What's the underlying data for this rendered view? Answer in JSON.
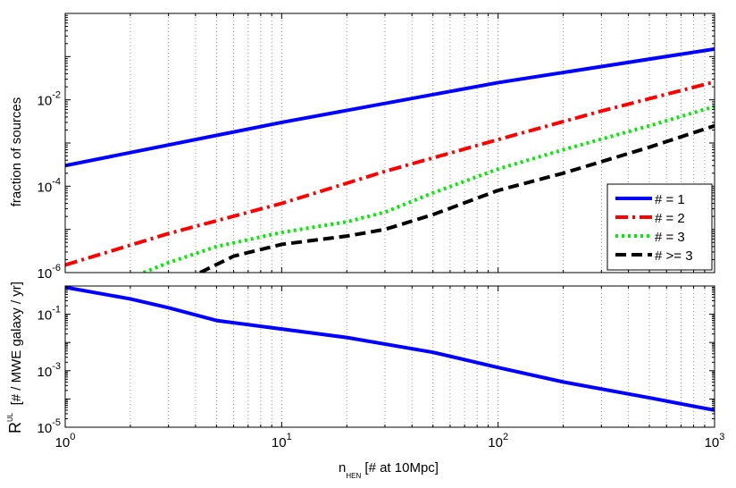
{
  "chart_data": [
    {
      "type": "line",
      "x_scale": "log",
      "y_scale": "log",
      "xlim": [
        1,
        1000
      ],
      "ylim": [
        1e-06,
        1
      ],
      "x_ticks": [
        1,
        10,
        100,
        1000
      ],
      "y_ticks": [
        1e-06,
        0.0001,
        0.01
      ],
      "y_tick_labels": [
        {
          "base": "10",
          "exp": "-6"
        },
        {
          "base": "10",
          "exp": "-4"
        },
        {
          "base": "10",
          "exp": "-2"
        }
      ],
      "ylabel": "fraction of sources",
      "grid": "dotted, x major and minor",
      "legend_position": "bottom-right",
      "legend_labels": [
        "#  = 1",
        "#  = 2",
        "#  = 3",
        "# >= 3"
      ],
      "series": [
        {
          "color": "#0000ff",
          "dash": "solid",
          "x": [
            1,
            10,
            100,
            1000
          ],
          "y": [
            0.0003,
            0.003,
            0.025,
            0.15
          ]
        },
        {
          "color": "#ff0000",
          "dash": "dashdot",
          "x": [
            1,
            3,
            10,
            30,
            100,
            300,
            1000
          ],
          "y": [
            1.5e-06,
            8e-06,
            4e-05,
            0.00022,
            0.0012,
            0.0055,
            0.026
          ]
        },
        {
          "color": "#00ee00",
          "dash": "dotted",
          "x": [
            2.3,
            3,
            5,
            10,
            20,
            30,
            50,
            100,
            200,
            500,
            1000
          ],
          "y": [
            1e-06,
            1.7e-06,
            4e-06,
            8.5e-06,
            1.5e-05,
            2.5e-05,
            7e-05,
            0.00025,
            0.0007,
            0.0025,
            0.007
          ]
        },
        {
          "color": "#000000",
          "dash": "dashed",
          "x": [
            4.2,
            6,
            10,
            20,
            30,
            50,
            100,
            200,
            500,
            1000
          ],
          "y": [
            1e-06,
            2.4e-06,
            4.5e-06,
            7e-06,
            1e-05,
            2.2e-05,
            8e-05,
            0.0002,
            0.0008,
            0.0025
          ]
        }
      ]
    },
    {
      "type": "line",
      "x_scale": "log",
      "y_scale": "log",
      "xlim": [
        1,
        1000
      ],
      "ylim": [
        1e-05,
        1
      ],
      "x_ticks": [
        1,
        10,
        100,
        1000
      ],
      "x_tick_labels": [
        {
          "base": "10",
          "exp": "0"
        },
        {
          "base": "10",
          "exp": "1"
        },
        {
          "base": "10",
          "exp": "2"
        },
        {
          "base": "10",
          "exp": "3"
        }
      ],
      "y_ticks": [
        1e-05,
        0.001,
        0.1
      ],
      "y_tick_labels": [
        {
          "base": "10",
          "exp": "-5"
        },
        {
          "base": "10",
          "exp": "-3"
        },
        {
          "base": "10",
          "exp": "-1"
        }
      ],
      "ylabel": {
        "main": "R",
        "sup": "UL",
        "rest": "  [# / MWE galaxy / yr]"
      },
      "xlabel": {
        "main": "n",
        "sub": "HEN",
        "rest": " [# at 10Mpc]"
      },
      "grid": "dotted, x major and minor",
      "series": [
        {
          "color": "#0000ff",
          "dash": "solid",
          "x": [
            1,
            2,
            3,
            5,
            10,
            20,
            50,
            100,
            200,
            500,
            1000
          ],
          "y": [
            0.9,
            0.35,
            0.17,
            0.06,
            0.03,
            0.015,
            0.0045,
            0.0013,
            0.0004,
            0.00011,
            4e-05
          ]
        }
      ]
    }
  ]
}
